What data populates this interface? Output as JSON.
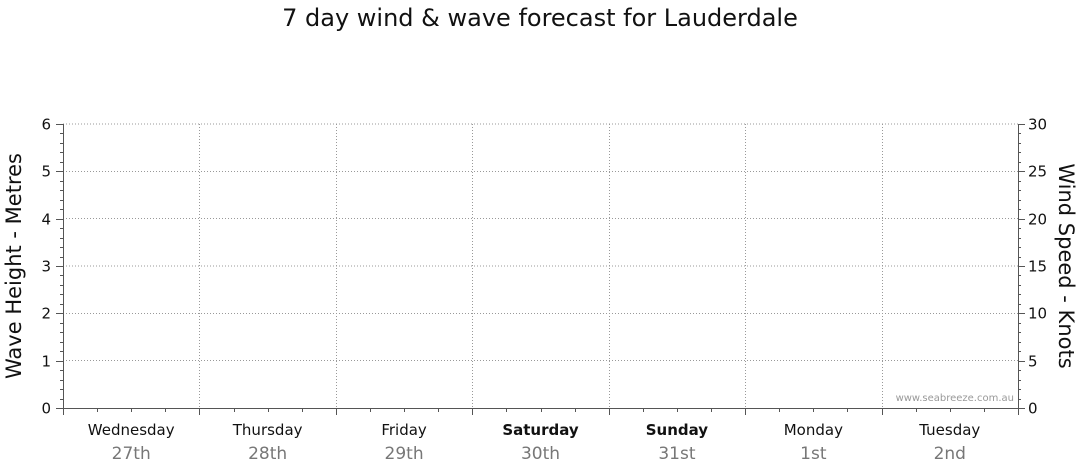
{
  "title": "7 day wind & wave forecast for Lauderdale",
  "watermark": "www.seabreeze.com.au",
  "chart_data": {
    "type": "line",
    "title": "7 day wind & wave forecast for Lauderdale",
    "left_axis": {
      "label": "Wave Height - Metres",
      "ylim": [
        0,
        6
      ],
      "ticks": [
        0,
        1,
        2,
        3,
        4,
        5,
        6
      ]
    },
    "right_axis": {
      "label": "Wind Speed - Knots",
      "ylim": [
        0,
        30
      ],
      "ticks": [
        0,
        5,
        10,
        15,
        20,
        25,
        30
      ]
    },
    "grid": true,
    "days": [
      {
        "name": "Wednesday",
        "date": "27th",
        "bold": false
      },
      {
        "name": "Thursday",
        "date": "28th",
        "bold": false
      },
      {
        "name": "Friday",
        "date": "29th",
        "bold": false
      },
      {
        "name": "Saturday",
        "date": "30th",
        "bold": true
      },
      {
        "name": "Sunday",
        "date": "31st",
        "bold": true
      },
      {
        "name": "Monday",
        "date": "1st",
        "bold": false
      },
      {
        "name": "Tuesday",
        "date": "2nd",
        "bold": false
      }
    ],
    "series": []
  }
}
